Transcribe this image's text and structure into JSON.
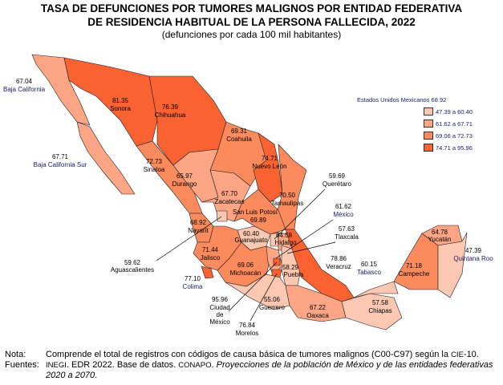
{
  "title_line1": "TASA DE DEFUNCIONES POR TUMORES MALIGNOS POR ENTIDAD FEDERATIVA",
  "title_line2": "DE RESIDENCIA HABITUAL DE LA PERSONA FALLECIDA, 2022",
  "subtitle": "(defunciones por cada 100 mil habitantes)",
  "legend": {
    "national": "Estados Unidos Mexicanos  68.92",
    "classes": [
      {
        "label": "47.39  a 60.40",
        "color": "#fdc8b2"
      },
      {
        "label": "61.62  a 67.71",
        "color": "#fca685"
      },
      {
        "label": "69.06  a 72.73",
        "color": "#fb8a5c"
      },
      {
        "label": "74.71  a 95.96",
        "color": "#fa6232"
      }
    ]
  },
  "states": [
    {
      "name": "Baja California",
      "value": "67.04",
      "class": 1
    },
    {
      "name": "Baja California Sur",
      "value": "67.71",
      "class": 1
    },
    {
      "name": "Sonora",
      "value": "81.35",
      "class": 3
    },
    {
      "name": "Chihuahua",
      "value": "76.39",
      "class": 3
    },
    {
      "name": "Coahuila",
      "value": "69.31",
      "class": 2
    },
    {
      "name": "Nuevo León",
      "value": "74.71",
      "class": 3
    },
    {
      "name": "Tamaulipas",
      "value": "70.50",
      "class": 2
    },
    {
      "name": "Sinaloa",
      "value": "72.73",
      "class": 2
    },
    {
      "name": "Durango",
      "value": "65.97",
      "class": 1
    },
    {
      "name": "Zacatecas",
      "value": "67.70",
      "class": 1
    },
    {
      "name": "San Luis Potosí",
      "value": "69.89",
      "class": 2
    },
    {
      "name": "Nayarit",
      "value": "68.92",
      "class": 2
    },
    {
      "name": "Aguascalientes",
      "value": "59.62",
      "class": 0
    },
    {
      "name": "Jalisco",
      "value": "71.44",
      "class": 2
    },
    {
      "name": "Colima",
      "value": "77.10",
      "class": 3
    },
    {
      "name": "Guanajuato",
      "value": "60.40",
      "class": 0
    },
    {
      "name": "Querétaro",
      "value": "59.69",
      "class": 0
    },
    {
      "name": "Hidalgo",
      "value": "64.58",
      "class": 1
    },
    {
      "name": "Michoacán",
      "value": "69.06",
      "class": 2
    },
    {
      "name": "México",
      "value": "61.62",
      "class": 1
    },
    {
      "name": "Ciudad de México",
      "value": "95.96",
      "class": 3
    },
    {
      "name": "Morelos",
      "value": "76.84",
      "class": 3
    },
    {
      "name": "Tlaxcala",
      "value": "57.63",
      "class": 0
    },
    {
      "name": "Puebla",
      "value": "58.29",
      "class": 0
    },
    {
      "name": "Veracruz",
      "value": "78.86",
      "class": 3
    },
    {
      "name": "Guerrero",
      "value": "55.06",
      "class": 0
    },
    {
      "name": "Oaxaca",
      "value": "67.22",
      "class": 1
    },
    {
      "name": "Chiapas",
      "value": "57.58",
      "class": 0
    },
    {
      "name": "Tabasco",
      "value": "60.15",
      "class": 0
    },
    {
      "name": "Campeche",
      "value": "71.18",
      "class": 2
    },
    {
      "name": "Yucatán",
      "value": "64.78",
      "class": 1
    },
    {
      "name": "Quintana Roo",
      "value": "47.39",
      "class": 0
    }
  ],
  "notes": {
    "nota_label": "Nota:",
    "nota_text_a": "Comprende el total de registros con códigos de causa básica de tumores malignos (C00-C97) según la ",
    "nota_cie": "CIE",
    "nota_text_b": "-10.",
    "fuentes_label": "Fuentes:",
    "f_inegi": "INEGI",
    "f_text1": ". EDR 2022. Base de datos. ",
    "f_conapo": "CONAPO",
    "f_text2": ". ",
    "f_italic": "Proyecciones de la población de México y de las entidades federativas 2020 a 2070",
    "f_end": "."
  }
}
